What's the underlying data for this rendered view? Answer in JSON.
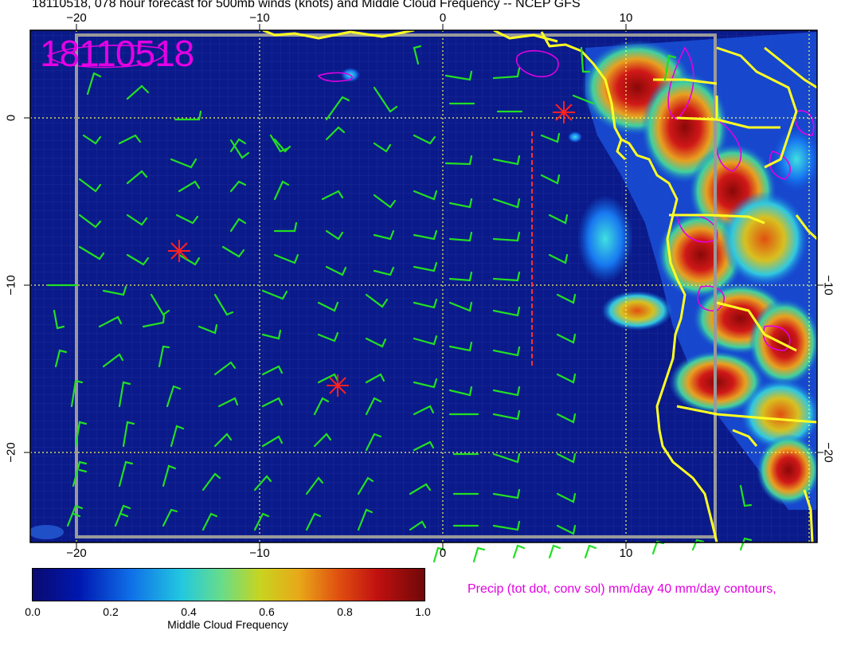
{
  "title": "18110518, 078 hour forecast for 500mb winds (knots) and Middle Cloud Frequency -- NCEP GFS",
  "stamp": "18110518",
  "top_ticks": [
    "−20",
    "−10",
    "0",
    "10"
  ],
  "bottom_ticks": [
    "−20",
    "−10",
    "0",
    "10"
  ],
  "left_ticks": [
    "0",
    "−10",
    "−20"
  ],
  "right_ticks": [
    "−10",
    "−20"
  ],
  "colorbar": {
    "ticks": [
      "0.0",
      "0.2",
      "0.4",
      "0.6",
      "0.8",
      "1.0"
    ],
    "label": "Middle Cloud Frequency",
    "colors": [
      "#0a0a70",
      "#0018b0",
      "#0f6fe8",
      "#22c8e0",
      "#66dc8c",
      "#c8d420",
      "#e8a818",
      "#e05010",
      "#c01010",
      "#700808"
    ]
  },
  "precip_note": "Precip (tot dot, conv sol) mm/day 40 mm/day contours,",
  "colors": {
    "ocean": "#0a1a8a",
    "coast": "#ffff22",
    "barbs": "#22e022",
    "gridline": "#ffff55",
    "markers": "#ff2020",
    "precip": "#e400e4"
  },
  "markers": [
    "asterisk",
    "asterisk",
    "asterisk"
  ]
}
